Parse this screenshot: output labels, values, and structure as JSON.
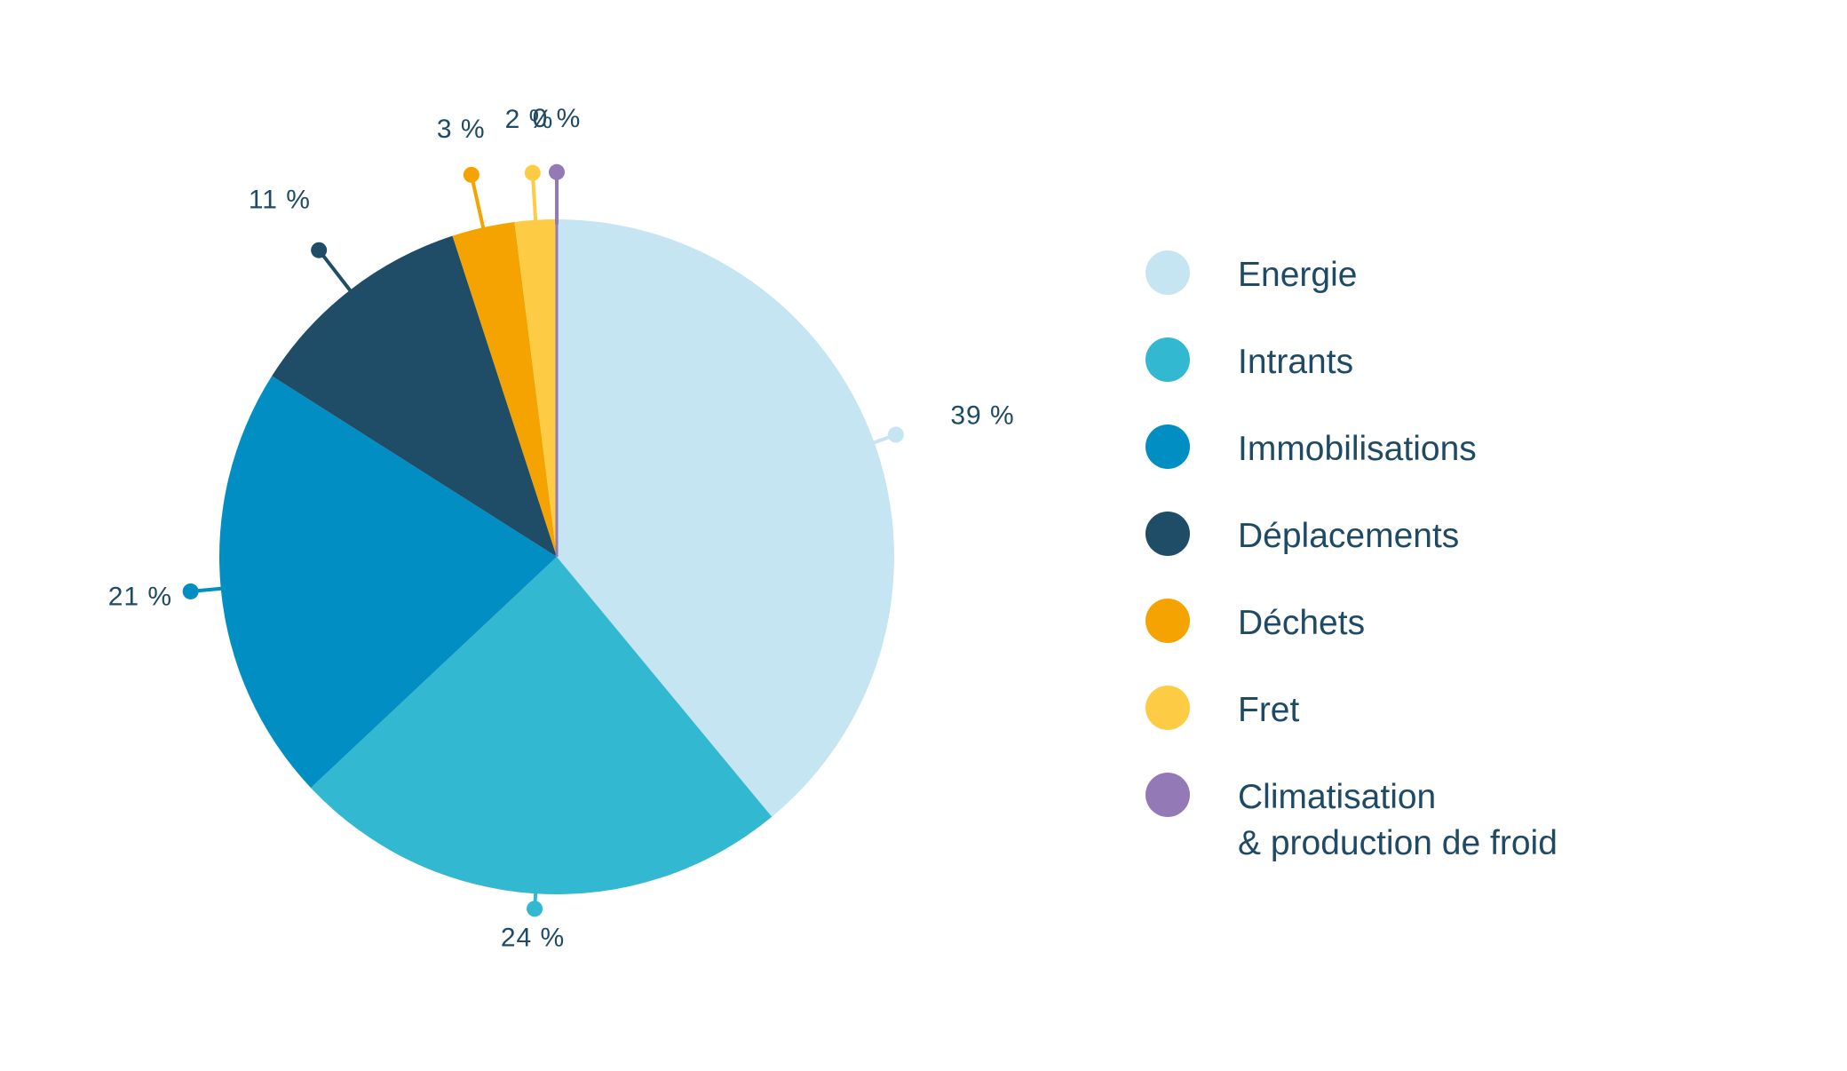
{
  "chart_data": {
    "type": "pie",
    "title": "",
    "unit": "%",
    "categories": [
      "Energie",
      "Intrants",
      "Immobilisations",
      "Déplacements",
      "Déchets",
      "Fret",
      "Climatisation\n& production de froid"
    ],
    "values": [
      39,
      24,
      21,
      11,
      3,
      2,
      0
    ],
    "labels": [
      "39 %",
      "24 %",
      "21 %",
      "11 %",
      "3 %",
      "2 %",
      "0 %"
    ],
    "colors": [
      "#c6e5f2",
      "#33b8d2",
      "#018fc3",
      "#1f4c66",
      "#f4a300",
      "#fecb45",
      "#9479b7"
    ],
    "start_angle": "top",
    "direction": "clockwise",
    "legend_position": "right"
  }
}
